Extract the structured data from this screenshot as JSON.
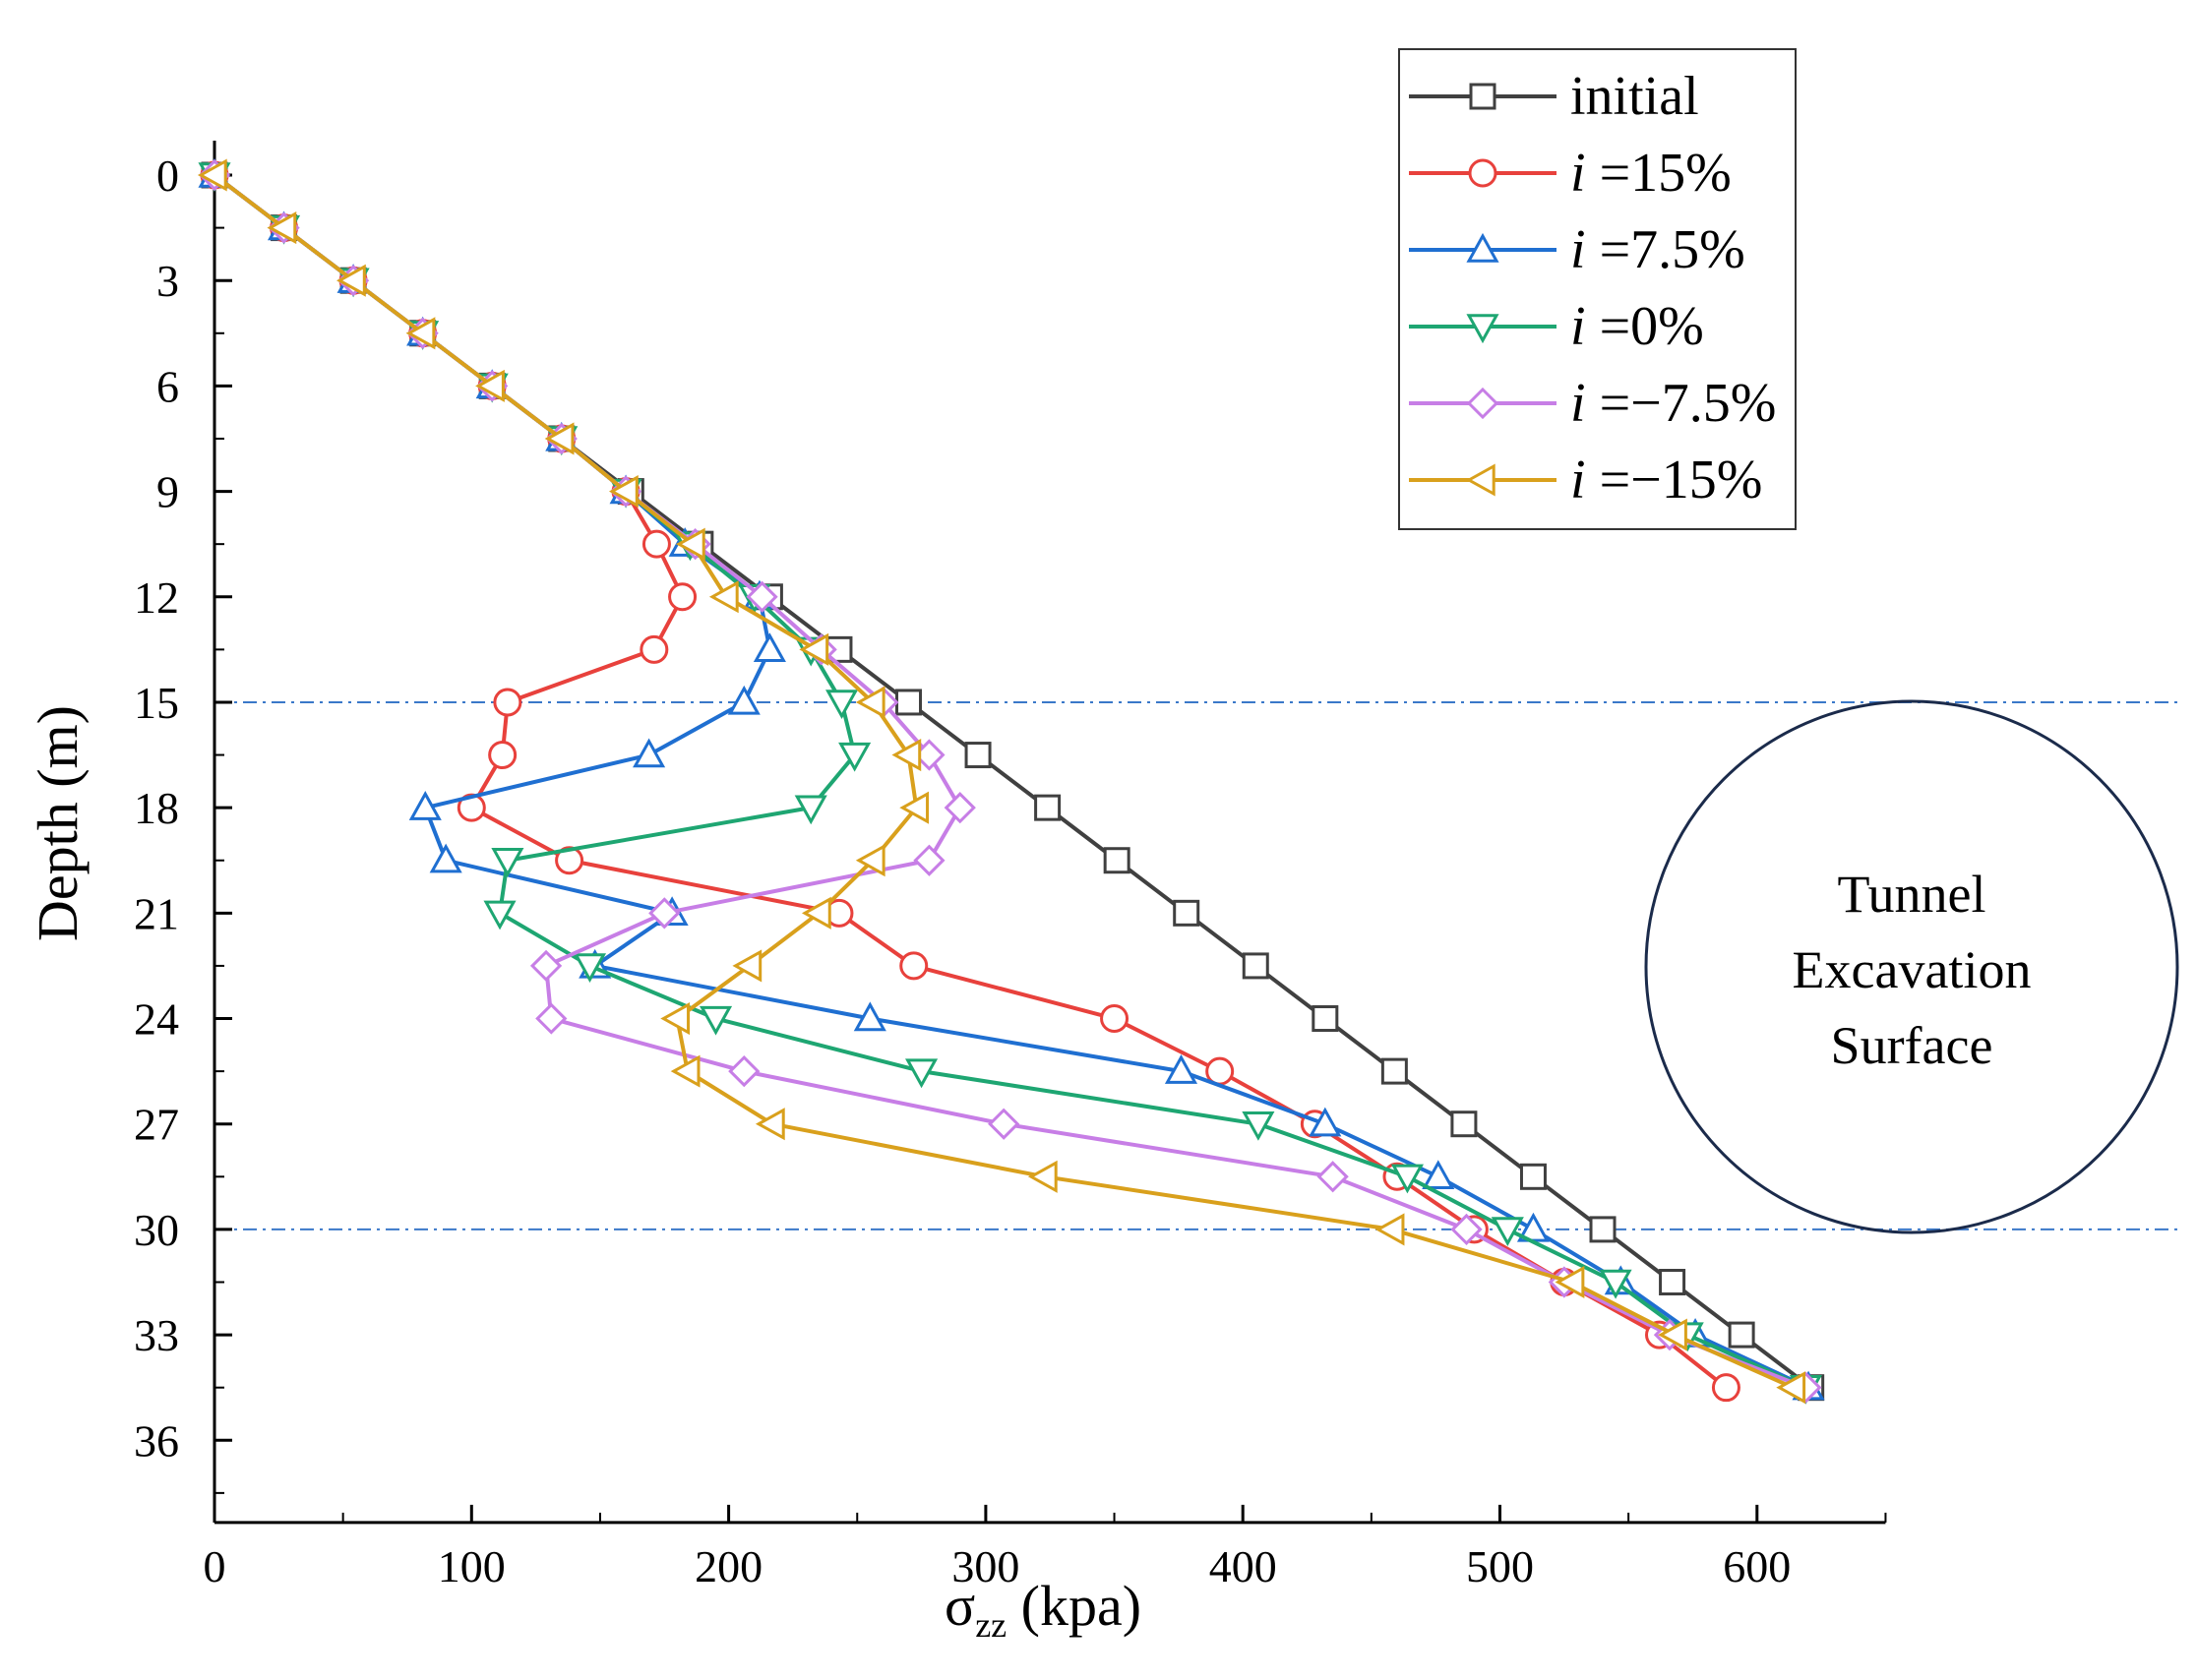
{
  "chart_data": {
    "type": "line",
    "xlabel_main": "σ",
    "xlabel_sub": "zz",
    "xlabel_unit": " (kpa)",
    "ylabel": "Depth (m)",
    "xlim": [
      0,
      650
    ],
    "ylim": [
      0,
      37.5
    ],
    "y_inverted": true,
    "xticks": [
      0,
      100,
      200,
      300,
      400,
      500,
      600
    ],
    "yticks": [
      0,
      3,
      6,
      9,
      12,
      15,
      18,
      21,
      24,
      27,
      30,
      33,
      36
    ],
    "grid": false,
    "reference_lines": [
      15,
      30
    ],
    "reference_line_color": "#3a78c9",
    "annotation": [
      "Tunnel",
      "Excavation",
      "Surface"
    ],
    "legend_position": "top-right",
    "series": [
      {
        "name": "initial",
        "prefix": "",
        "label": "initial",
        "color": "#404040",
        "marker": "square",
        "x": [
          0,
          27,
          54,
          81,
          108,
          135,
          162,
          189,
          216,
          243,
          270,
          297,
          324,
          351,
          378,
          405,
          432,
          459,
          486,
          513,
          540,
          567,
          594,
          621
        ],
        "y": [
          0,
          1.5,
          3,
          4.5,
          6,
          7.5,
          9,
          10.5,
          12,
          13.5,
          15,
          16.5,
          18,
          19.5,
          21,
          22.5,
          24,
          25.5,
          27,
          28.5,
          30,
          31.5,
          33,
          34.5
        ]
      },
      {
        "name": "i =15%",
        "prefix": "i",
        "label": " =15%",
        "color": "#e8413c",
        "marker": "circle",
        "x": [
          0,
          27,
          54,
          81,
          108,
          135,
          160,
          172,
          182,
          171,
          114,
          112,
          100,
          138,
          243,
          272,
          350,
          391,
          428,
          460,
          490,
          525,
          562,
          588
        ],
        "y": [
          0,
          1.5,
          3,
          4.5,
          6,
          7.5,
          9,
          10.5,
          12,
          13.5,
          15,
          16.5,
          18,
          19.5,
          21,
          22.5,
          24,
          25.5,
          27,
          28.5,
          30,
          31.5,
          33,
          34.5
        ]
      },
      {
        "name": "i =7.5%",
        "prefix": "i",
        "label": " =7.5%",
        "color": "#1f6fd1",
        "marker": "triangle-up",
        "x": [
          0,
          27,
          54,
          81,
          108,
          135,
          160,
          183,
          212,
          216,
          206,
          169,
          82,
          90,
          178,
          148,
          255,
          376,
          432,
          476,
          513,
          547,
          576,
          620
        ],
        "y": [
          0,
          1.5,
          3,
          4.5,
          6,
          7.5,
          9,
          10.5,
          12,
          13.5,
          15,
          16.5,
          18,
          19.5,
          21,
          22.5,
          24,
          25.5,
          27,
          28.5,
          30,
          31.5,
          33,
          34.5
        ]
      },
      {
        "name": "i =0%",
        "prefix": "i",
        "label": " =0%",
        "color": "#1ea672",
        "marker": "triangle-down",
        "x": [
          0,
          27,
          54,
          81,
          108,
          135,
          160,
          185,
          210,
          232,
          244,
          249,
          232,
          114,
          111,
          146,
          195,
          275,
          406,
          464,
          503,
          545,
          573,
          619
        ],
        "y": [
          0,
          1.5,
          3,
          4.5,
          6,
          7.5,
          9,
          10.5,
          12,
          13.5,
          15,
          16.5,
          18,
          19.5,
          21,
          22.5,
          24,
          25.5,
          27,
          28.5,
          30,
          31.5,
          33,
          34.5
        ]
      },
      {
        "name": "i =-7.5%",
        "prefix": "i",
        "label": " =−7.5%",
        "color": "#c77ee6",
        "marker": "diamond",
        "x": [
          0,
          27,
          54,
          81,
          108,
          135,
          160,
          187,
          213,
          236,
          260,
          278,
          290,
          278,
          175,
          129,
          131,
          206,
          307,
          435,
          487,
          525,
          566,
          619
        ],
        "y": [
          0,
          1.5,
          3,
          4.5,
          6,
          7.5,
          9,
          10.5,
          12,
          13.5,
          15,
          16.5,
          18,
          19.5,
          21,
          22.5,
          24,
          25.5,
          27,
          28.5,
          30,
          31.5,
          33,
          34.5
        ]
      },
      {
        "name": "i =-15%",
        "prefix": "i",
        "label": " =−15%",
        "color": "#d9a01c",
        "marker": "triangle-left",
        "x": [
          0,
          27,
          54,
          81,
          108,
          135,
          160,
          186,
          199,
          234,
          256,
          270,
          273,
          256,
          235,
          208,
          180,
          184,
          217,
          323,
          458,
          528,
          568,
          614
        ],
        "y": [
          0,
          1.5,
          3,
          4.5,
          6,
          7.5,
          9,
          10.5,
          12,
          13.5,
          15,
          16.5,
          18,
          19.5,
          21,
          22.5,
          24,
          25.5,
          27,
          28.5,
          30,
          31.5,
          33,
          34.5
        ]
      }
    ]
  }
}
